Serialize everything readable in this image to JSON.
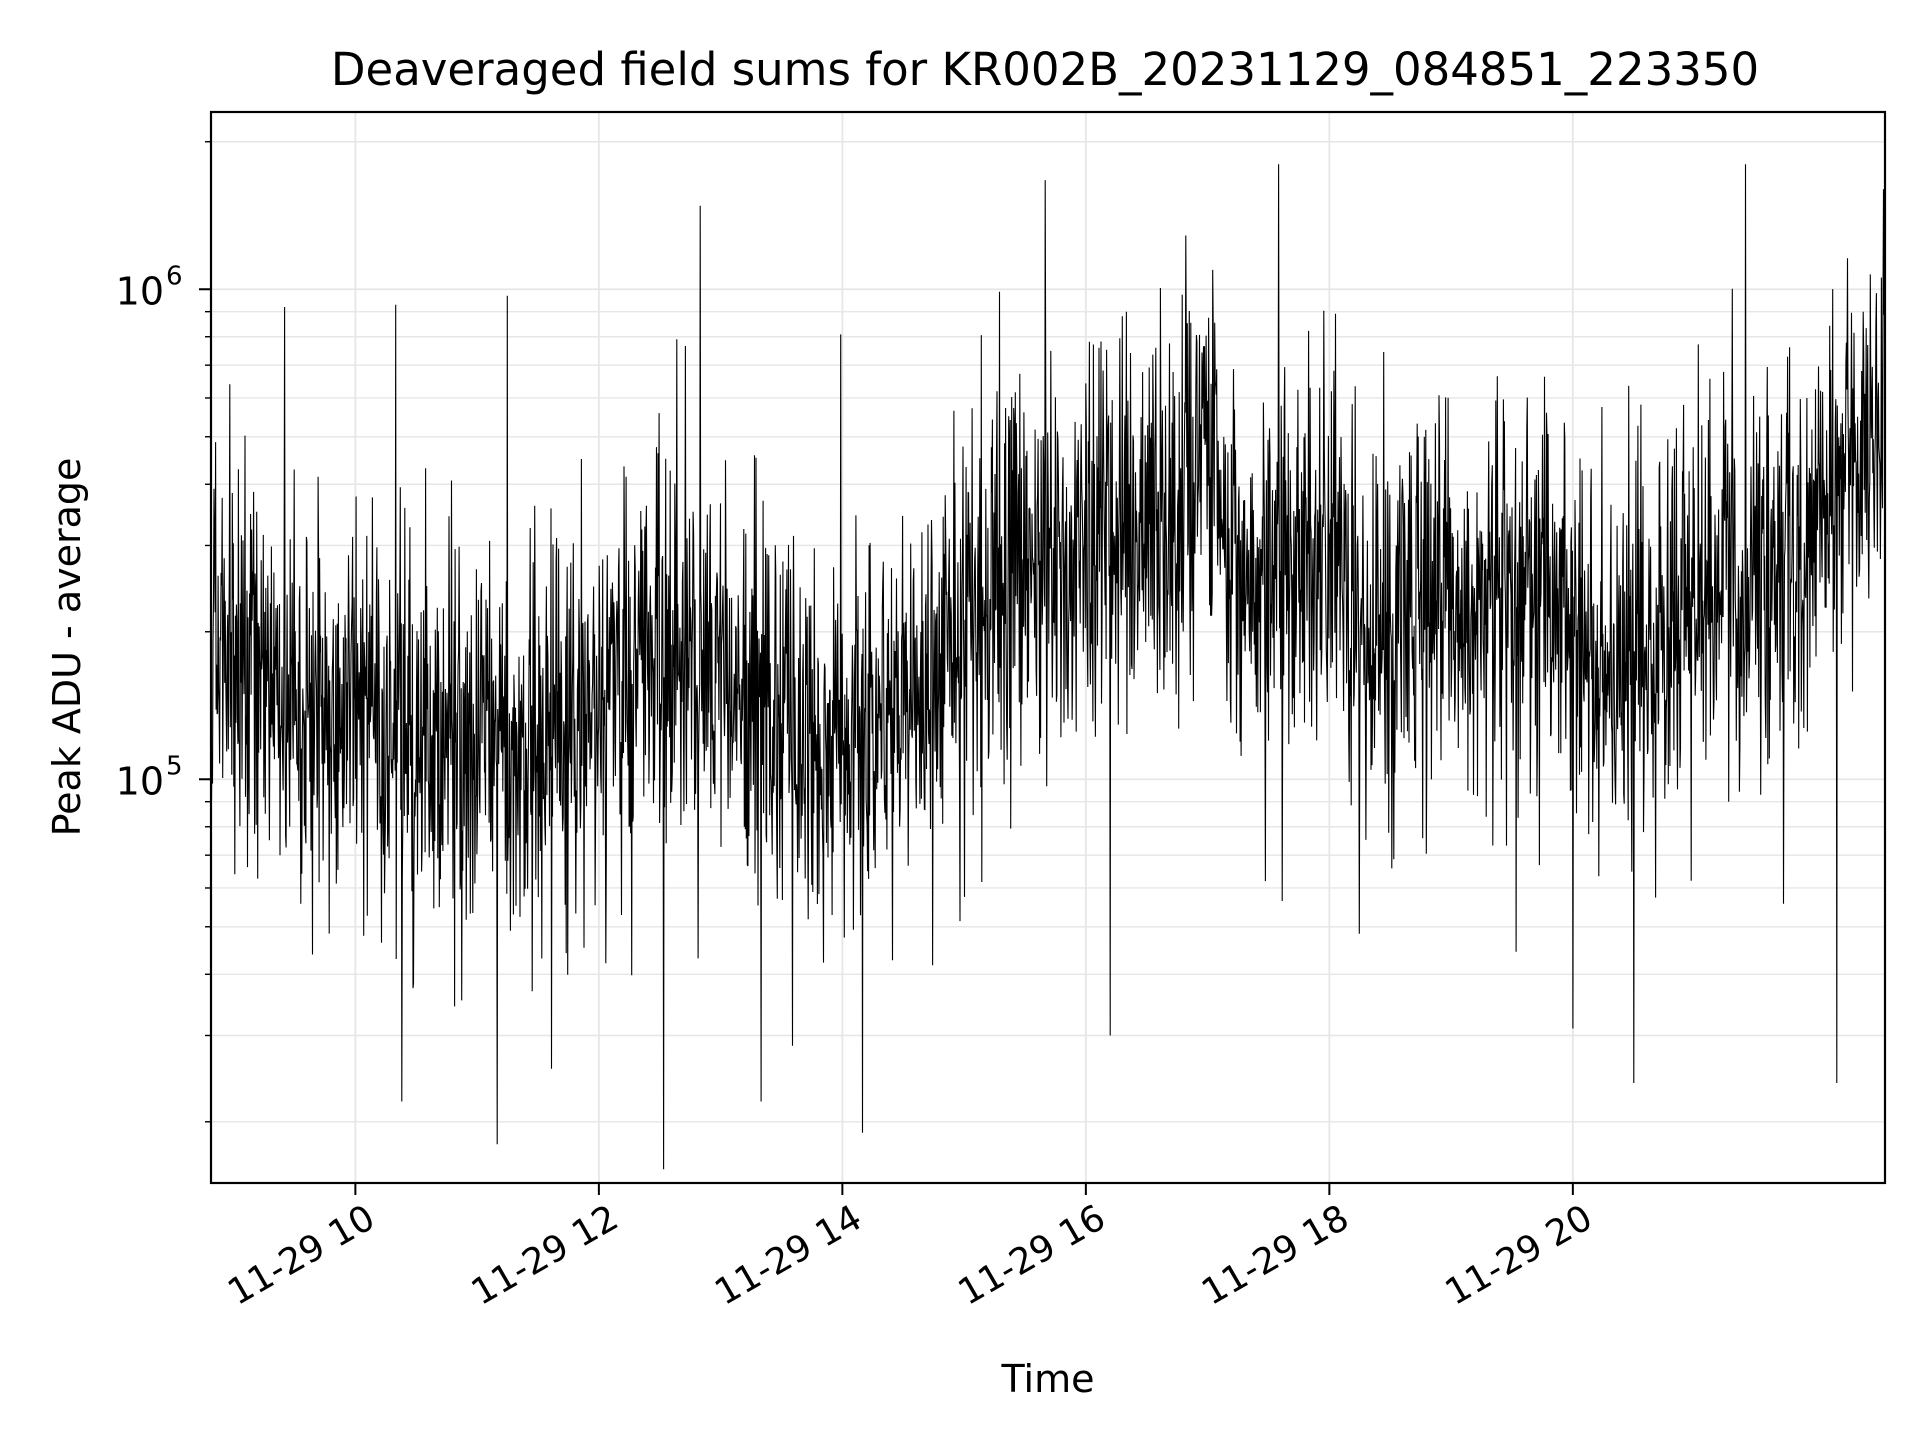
{
  "chart_data": {
    "type": "line",
    "title": "Deaveraged field sums for KR002B_20231129_084851_223350",
    "xlabel": "Time",
    "ylabel": "Peak ADU - average",
    "y_scale": "log",
    "ylim": [
      15000,
      2300000
    ],
    "xlim": [
      "2023-11-29 08:48:51",
      "2023-11-29 22:33:50"
    ],
    "grid": true,
    "line_color": "#000000",
    "grid_color": "#e6e6e6",
    "x_ticks": [
      {
        "value": "2023-11-29 10:00",
        "label": "11-29 10"
      },
      {
        "value": "2023-11-29 12:00",
        "label": "11-29 12"
      },
      {
        "value": "2023-11-29 14:00",
        "label": "11-29 14"
      },
      {
        "value": "2023-11-29 16:00",
        "label": "11-29 16"
      },
      {
        "value": "2023-11-29 18:00",
        "label": "11-29 18"
      },
      {
        "value": "2023-11-29 20:00",
        "label": "11-29 20"
      }
    ],
    "y_ticks": [
      {
        "value": 100000,
        "base": "10",
        "exp": "5"
      },
      {
        "value": 1000000,
        "base": "10",
        "exp": "6"
      }
    ],
    "series": [
      {
        "level_profile": {
          "time": [
            "2023-11-29 08:48:51",
            "2023-11-29 09:30",
            "2023-11-29 10:30",
            "2023-11-29 11:30",
            "2023-11-29 12:15",
            "2023-11-29 12:45",
            "2023-11-29 13:30",
            "2023-11-29 14:00",
            "2023-11-29 14:30",
            "2023-11-29 15:00",
            "2023-11-29 15:30",
            "2023-11-29 16:00",
            "2023-11-29 16:30",
            "2023-11-29 17:00",
            "2023-11-29 17:20",
            "2023-11-29 17:45",
            "2023-11-29 18:15",
            "2023-11-29 19:00",
            "2023-11-29 19:45",
            "2023-11-29 20:15",
            "2023-11-29 21:00",
            "2023-11-29 21:45",
            "2023-11-29 22:15",
            "2023-11-29 22:33:50"
          ],
          "median": [
            200000,
            140000,
            125000,
            120000,
            165000,
            190000,
            130000,
            115000,
            140000,
            200000,
            270000,
            330000,
            310000,
            450000,
            220000,
            340000,
            210000,
            240000,
            250000,
            160000,
            230000,
            240000,
            450000,
            600000
          ]
        },
        "extremes": [
          {
            "time": "2023-11-29 08:58",
            "value": 640000
          },
          {
            "time": "2023-11-29 09:25",
            "value": 920000
          },
          {
            "time": "2023-11-29 10:20",
            "value": 930000
          },
          {
            "time": "2023-11-29 10:23",
            "value": 22000
          },
          {
            "time": "2023-11-29 11:10",
            "value": 18000
          },
          {
            "time": "2023-11-29 11:15",
            "value": 970000
          },
          {
            "time": "2023-11-29 12:32",
            "value": 16000
          },
          {
            "time": "2023-11-29 12:50",
            "value": 1480000
          },
          {
            "time": "2023-11-29 13:20",
            "value": 22000
          },
          {
            "time": "2023-11-29 14:10",
            "value": 19000
          },
          {
            "time": "2023-11-29 15:40",
            "value": 1670000
          },
          {
            "time": "2023-11-29 16:12",
            "value": 30000
          },
          {
            "time": "2023-11-29 17:35",
            "value": 1800000
          },
          {
            "time": "2023-11-29 20:00",
            "value": 31000
          },
          {
            "time": "2023-11-29 20:30",
            "value": 24000
          },
          {
            "time": "2023-11-29 21:25",
            "value": 1800000
          },
          {
            "time": "2023-11-29 22:10",
            "value": 24000
          },
          {
            "time": "2023-11-29 22:33",
            "value": 1600000
          }
        ]
      }
    ]
  }
}
